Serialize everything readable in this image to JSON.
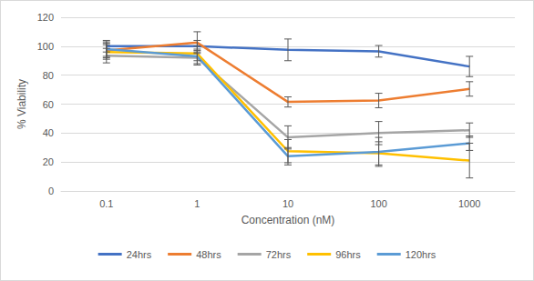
{
  "chart_data": {
    "type": "line",
    "x_label": "Concentration (nM)",
    "y_label": "% Viability",
    "categories": [
      "0.1",
      "1",
      "10",
      "100",
      "1000"
    ],
    "series": [
      {
        "name": "24hrs",
        "color": "#4472c4",
        "values": [
          100,
          100,
          97.5,
          96.5,
          86
        ],
        "errors": [
          4,
          4,
          7.5,
          4,
          7
        ]
      },
      {
        "name": "48hrs",
        "color": "#ed7d31",
        "values": [
          97,
          102.5,
          61.5,
          62.5,
          70.5
        ],
        "errors": [
          5,
          7.5,
          3.5,
          5,
          5
        ]
      },
      {
        "name": "72hrs",
        "color": "#a5a5a5",
        "values": [
          93.5,
          92,
          37,
          40,
          42
        ],
        "errors": [
          5,
          5,
          8,
          8,
          5
        ]
      },
      {
        "name": "96hrs",
        "color": "#ffc000",
        "values": [
          96,
          95,
          27.5,
          26,
          21
        ],
        "errors": [
          5,
          5,
          8,
          8,
          12
        ]
      },
      {
        "name": "120hrs",
        "color": "#5b9bd5",
        "values": [
          98,
          93,
          24,
          27,
          33
        ],
        "errors": [
          5,
          5,
          6,
          10,
          5
        ]
      }
    ],
    "ylim": [
      0,
      120
    ],
    "yticks": [
      0,
      20,
      40,
      60,
      80,
      100,
      120
    ],
    "grid": true,
    "legend": "bottom",
    "marker": "none"
  }
}
